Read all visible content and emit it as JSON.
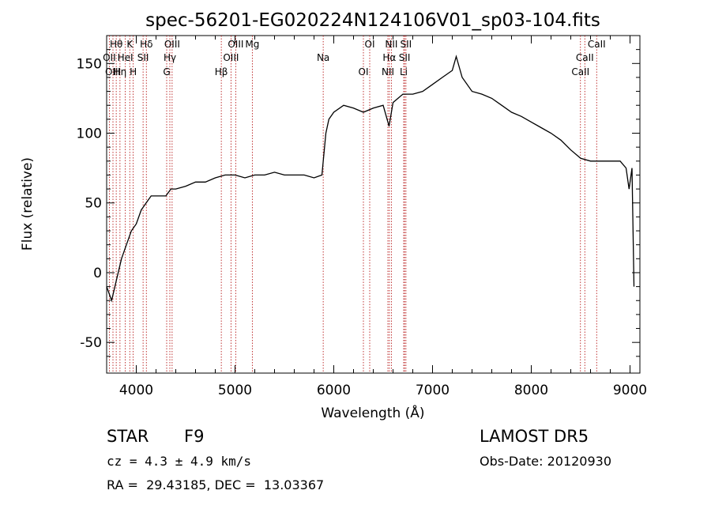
{
  "chart_data": {
    "type": "line",
    "title": "spec-56201-EG020224N124106V01_sp03-104.fits",
    "xlabel": "Wavelength (Å)",
    "ylabel": "Flux (relative)",
    "xlim": [
      3700,
      9100
    ],
    "ylim": [
      -72,
      170
    ],
    "xticks": [
      4000,
      5000,
      6000,
      7000,
      8000,
      9000
    ],
    "yticks": [
      -50,
      0,
      50,
      100,
      150
    ],
    "grid": false,
    "line_color": "#000000",
    "marker_color": "#b00000",
    "series": [
      {
        "values_x": [
          3700,
          3750,
          3800,
          3850,
          3900,
          3950,
          4000,
          4050,
          4100,
          4150,
          4200,
          4250,
          4300,
          4350,
          4400,
          4500,
          4600,
          4700,
          4800,
          4900,
          5000,
          5100,
          5200,
          5300,
          5400,
          5500,
          5600,
          5700,
          5800,
          5880,
          5920,
          5950,
          6000,
          6100,
          6200,
          6300,
          6400,
          6500,
          6560,
          6600,
          6650,
          6700,
          6800,
          6900,
          7000,
          7100,
          7200,
          7240,
          7300,
          7400,
          7500,
          7600,
          7700,
          7800,
          7900,
          8000,
          8100,
          8200,
          8300,
          8400,
          8500,
          8600,
          8700,
          8800,
          8900,
          8960,
          8990,
          9020,
          9040
        ],
        "values_y": [
          -10,
          -20,
          -5,
          10,
          20,
          30,
          35,
          45,
          50,
          55,
          55,
          55,
          55,
          60,
          60,
          62,
          65,
          65,
          68,
          70,
          70,
          68,
          70,
          70,
          72,
          70,
          70,
          70,
          68,
          70,
          100,
          110,
          115,
          120,
          118,
          115,
          118,
          120,
          105,
          122,
          125,
          128,
          128,
          130,
          135,
          140,
          145,
          155,
          140,
          130,
          128,
          125,
          120,
          115,
          112,
          108,
          104,
          100,
          95,
          88,
          82,
          80,
          80,
          80,
          80,
          75,
          60,
          75,
          -10
        ]
      }
    ],
    "lines": [
      {
        "name": "Hθ",
        "x": 3797
      },
      {
        "name": "OII",
        "x": 3727
      },
      {
        "name": "OIII",
        "x": 3764
      },
      {
        "name": "K",
        "x": 3934
      },
      {
        "name": "HeI",
        "x": 3889
      },
      {
        "name": "Hη",
        "x": 3835
      },
      {
        "name": "Hδ",
        "x": 4102
      },
      {
        "name": "SII",
        "x": 4069
      },
      {
        "name": "H",
        "x": 3969
      },
      {
        "name": "OIII",
        "x": 4363
      },
      {
        "name": "Hγ",
        "x": 4340
      },
      {
        "name": "G",
        "x": 4308
      },
      {
        "name": "OIII",
        "x": 5007
      },
      {
        "name": "OIII",
        "x": 4959
      },
      {
        "name": "Hβ",
        "x": 4861
      },
      {
        "name": "Mg",
        "x": 5175
      },
      {
        "name": "Na",
        "x": 5893
      },
      {
        "name": "OI",
        "x": 6300
      },
      {
        "name": "OI",
        "x": 6364
      },
      {
        "name": "Hα",
        "x": 6563
      },
      {
        "name": "NII",
        "x": 6548
      },
      {
        "name": "NII",
        "x": 6583
      },
      {
        "name": "SII",
        "x": 6717
      },
      {
        "name": "Li",
        "x": 6708
      },
      {
        "name": "SII",
        "x": 6731
      },
      {
        "name": "CaII",
        "x": 8542
      },
      {
        "name": "CaII",
        "x": 8498
      },
      {
        "name": "CaII",
        "x": 8662
      }
    ]
  },
  "info": {
    "class_label": "STAR",
    "subclass": "F9",
    "survey": "LAMOST DR5",
    "cz_text": "cz = 4.3 ± 4.9 km/s",
    "obs_date": "Obs-Date: 20120930",
    "coords": "RA =  29.43185, DEC =  13.03367"
  }
}
